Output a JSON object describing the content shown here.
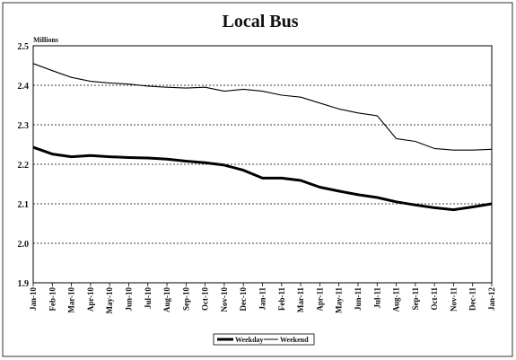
{
  "chart_data": {
    "type": "line",
    "title": "Local Bus",
    "unit_label": "Millions",
    "xlabel": "",
    "ylabel": "",
    "ylim": [
      1.9,
      2.5
    ],
    "yticks": [
      "2.5",
      "2.4",
      "2.3",
      "2.2",
      "2.1",
      "2.0",
      "1.9"
    ],
    "ytick_values": [
      2.5,
      2.4,
      2.3,
      2.2,
      2.1,
      2.0,
      1.9
    ],
    "grid": "horizontal dotted",
    "legend_position": "bottom",
    "categories": [
      "Jan-10",
      "Feb-10",
      "Mar-10",
      "Apr-10",
      "May-10",
      "Jun-10",
      "Jul-10",
      "Aug-10",
      "Sep-10",
      "Oct-10",
      "Nov-10",
      "Dec-10",
      "Jan-11",
      "Feb-11",
      "Mar-11",
      "Apr-11",
      "May-11",
      "Jun-11",
      "Jul-11",
      "Aug-11",
      "Sep-11",
      "Oct-11",
      "Nov-11",
      "Dec-11",
      "Jan-12"
    ],
    "series": [
      {
        "name": "Weekday",
        "color": "#000000",
        "weight": "thick",
        "values": [
          2.243,
          2.226,
          2.219,
          2.222,
          2.219,
          2.217,
          2.216,
          2.213,
          2.208,
          2.204,
          2.198,
          2.185,
          2.165,
          2.165,
          2.159,
          2.142,
          2.132,
          2.123,
          2.116,
          2.105,
          2.097,
          2.09,
          2.085,
          2.092,
          2.1
        ]
      },
      {
        "name": "Weekend",
        "color": "#000000",
        "weight": "thin",
        "values": [
          2.455,
          2.437,
          2.42,
          2.41,
          2.406,
          2.403,
          2.398,
          2.395,
          2.393,
          2.395,
          2.385,
          2.39,
          2.385,
          2.375,
          2.37,
          2.355,
          2.34,
          2.33,
          2.323,
          2.265,
          2.258,
          2.24,
          2.236,
          2.236,
          2.238
        ]
      }
    ]
  }
}
